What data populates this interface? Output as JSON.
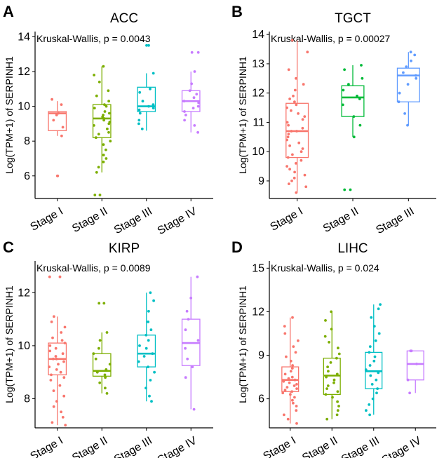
{
  "chart_data": [
    {
      "type": "box",
      "letter": "A",
      "title": "ACC",
      "ylabel": "Log(TPM+1) of SERPINH1",
      "annotation": "Kruskal-Wallis, p = 0.0043",
      "ylim": [
        4.7,
        14.3
      ],
      "yticks": [
        6,
        8,
        10,
        12,
        14
      ],
      "categories": [
        "Stage I",
        "Stage II",
        "Stage III",
        "Stage IV"
      ],
      "colors": [
        "#f8766d",
        "#7cae00",
        "#00bfc4",
        "#c77cff"
      ],
      "boxes": [
        {
          "q1": 8.6,
          "median": 9.6,
          "q3": 9.7,
          "lower": 8.3,
          "upper": 10.3
        },
        {
          "q1": 8.2,
          "median": 9.3,
          "q3": 10.1,
          "lower": 6.2,
          "upper": 12.3
        },
        {
          "q1": 9.7,
          "median": 10.0,
          "q3": 11.1,
          "lower": 8.6,
          "upper": 11.9
        },
        {
          "q1": 9.7,
          "median": 10.3,
          "q3": 10.9,
          "lower": 8.5,
          "upper": 12.0
        }
      ],
      "points": [
        [
          10.4,
          10.1,
          9.6,
          9.5,
          9.2,
          8.8,
          8.3,
          6.0,
          6.0
        ],
        [
          12.3,
          11.8,
          11.4,
          10.9,
          10.6,
          10.3,
          10.1,
          10.0,
          9.9,
          9.7,
          9.6,
          9.5,
          9.4,
          9.3,
          9.2,
          9.1,
          9.0,
          8.9,
          8.7,
          8.5,
          8.4,
          8.2,
          8.0,
          7.8,
          7.5,
          7.2,
          7.0,
          6.8,
          6.5,
          6.2,
          4.9,
          4.9
        ],
        [
          13.5,
          13.5,
          11.9,
          11.0,
          10.8,
          10.3,
          10.1,
          10.0,
          9.9,
          9.8,
          9.6,
          9.2,
          9.0,
          8.7
        ],
        [
          13.1,
          13.1,
          12.0,
          11.3,
          10.9,
          10.7,
          10.5,
          10.3,
          10.2,
          10.0,
          9.9,
          9.7,
          9.5,
          9.2,
          8.9,
          8.5
        ]
      ]
    },
    {
      "type": "box",
      "letter": "B",
      "title": "TGCT",
      "ylabel": "Log(TPM+1) of SERPINH1",
      "annotation": "Kruskal-Wallis, p = 0.00027",
      "ylim": [
        8.4,
        14.1
      ],
      "yticks": [
        9,
        10,
        11,
        12,
        13,
        14
      ],
      "categories": [
        "Stage I",
        "Stage II",
        "Stage III"
      ],
      "colors": [
        "#f8766d",
        "#00ba38",
        "#619cff"
      ],
      "boxes": [
        {
          "q1": 9.8,
          "median": 10.7,
          "q3": 11.65,
          "lower": 8.6,
          "upper": 13.8
        },
        {
          "q1": 11.2,
          "median": 11.85,
          "q3": 12.25,
          "lower": 10.5,
          "upper": 12.95
        },
        {
          "q1": 11.7,
          "median": 12.6,
          "q3": 12.85,
          "lower": 10.9,
          "upper": 13.4
        }
      ],
      "points": [
        [
          13.8,
          13.4,
          12.8,
          12.5,
          12.3,
          12.1,
          11.9,
          11.8,
          11.7,
          11.6,
          11.5,
          11.4,
          11.3,
          11.2,
          11.1,
          11.0,
          10.9,
          10.8,
          10.7,
          10.7,
          10.6,
          10.5,
          10.4,
          10.3,
          10.2,
          10.1,
          10.0,
          9.9,
          9.8,
          9.7,
          9.6,
          9.5,
          9.4,
          9.3,
          9.2,
          9.1,
          9.0,
          8.9,
          8.8,
          8.6
        ],
        [
          12.95,
          12.8,
          12.5,
          12.3,
          12.1,
          11.9,
          11.8,
          11.6,
          11.2,
          10.9,
          10.5,
          8.7,
          8.7
        ],
        [
          13.4,
          13.3,
          13.1,
          12.9,
          12.7,
          12.6,
          12.5,
          12.3,
          12.0,
          11.7,
          11.3,
          10.9
        ]
      ]
    },
    {
      "type": "box",
      "letter": "C",
      "title": "KIRP",
      "ylabel": "Log(TPM+1) of SERPINH1",
      "annotation": "Kruskal-Wallis, p = 0.0089",
      "ylim": [
        6.9,
        13.2
      ],
      "yticks": [
        8,
        10,
        12
      ],
      "categories": [
        "Stage I",
        "Stage II",
        "Stage III",
        "Stage IV"
      ],
      "colors": [
        "#f8766d",
        "#7cae00",
        "#00bfc4",
        "#c77cff"
      ],
      "boxes": [
        {
          "q1": 8.9,
          "median": 9.5,
          "q3": 10.1,
          "lower": 7.0,
          "upper": 11.1
        },
        {
          "q1": 8.85,
          "median": 9.05,
          "q3": 9.7,
          "lower": 8.2,
          "upper": 10.5
        },
        {
          "q1": 9.2,
          "median": 9.7,
          "q3": 10.4,
          "lower": 7.9,
          "upper": 12.0
        },
        {
          "q1": 9.25,
          "median": 10.1,
          "q3": 11.0,
          "lower": 7.6,
          "upper": 12.6
        }
      ],
      "points": [
        [
          12.6,
          12.6,
          11.1,
          10.9,
          10.7,
          10.5,
          10.3,
          10.2,
          10.1,
          10.0,
          9.9,
          9.8,
          9.7,
          9.6,
          9.5,
          9.5,
          9.4,
          9.3,
          9.2,
          9.1,
          9.0,
          8.9,
          8.8,
          8.7,
          8.5,
          8.3,
          8.1,
          7.9,
          7.7,
          7.5,
          7.3,
          7.1,
          7.0
        ],
        [
          11.6,
          11.6,
          10.5,
          10.2,
          9.9,
          9.7,
          9.5,
          9.3,
          9.1,
          9.0,
          8.9,
          8.8,
          8.6,
          8.4,
          8.2
        ],
        [
          12.0,
          11.7,
          11.3,
          10.9,
          10.6,
          10.4,
          10.2,
          10.0,
          9.9,
          9.7,
          9.6,
          9.4,
          9.2,
          9.0,
          8.7,
          8.4,
          8.1,
          7.9
        ],
        [
          12.6,
          11.8,
          11.3,
          11.0,
          10.6,
          10.2,
          9.9,
          9.5,
          9.2,
          8.8,
          7.6
        ]
      ]
    },
    {
      "type": "box",
      "letter": "D",
      "title": "LIHC",
      "ylabel": "Log(TPM+1) of SERPINH1",
      "annotation": "Kruskal-Wallis, p = 0.024",
      "ylim": [
        4.0,
        15.5
      ],
      "yticks": [
        6,
        9,
        12,
        15
      ],
      "categories": [
        "Stage I",
        "Stage II",
        "Stage III",
        "Stage IV"
      ],
      "colors": [
        "#f8766d",
        "#7cae00",
        "#00bfc4",
        "#c77cff"
      ],
      "boxes": [
        {
          "q1": 6.5,
          "median": 7.3,
          "q3": 8.2,
          "lower": 4.3,
          "upper": 11.6
        },
        {
          "q1": 6.3,
          "median": 7.6,
          "q3": 8.8,
          "lower": 4.6,
          "upper": 12.0
        },
        {
          "q1": 6.7,
          "median": 7.9,
          "q3": 9.2,
          "lower": 4.9,
          "upper": 12.5
        },
        {
          "q1": 7.3,
          "median": 8.4,
          "q3": 9.3,
          "lower": 6.4,
          "upper": 9.3
        }
      ],
      "points": [
        [
          11.6,
          11.0,
          10.5,
          10.0,
          9.6,
          9.2,
          8.9,
          8.6,
          8.3,
          8.1,
          7.9,
          7.7,
          7.5,
          7.4,
          7.3,
          7.2,
          7.1,
          7.0,
          6.9,
          6.8,
          6.7,
          6.6,
          6.5,
          6.4,
          6.3,
          6.1,
          5.9,
          5.7,
          5.5,
          5.2,
          4.9,
          4.6,
          4.3
        ],
        [
          12.0,
          11.4,
          10.8,
          10.3,
          9.9,
          9.5,
          9.1,
          8.8,
          8.5,
          8.2,
          7.9,
          7.7,
          7.5,
          7.3,
          7.1,
          6.9,
          6.7,
          6.5,
          6.3,
          6.1,
          5.8,
          5.5,
          5.2,
          4.9,
          4.6
        ],
        [
          12.5,
          12.2,
          11.6,
          11.0,
          10.5,
          10.0,
          9.6,
          9.2,
          8.9,
          8.6,
          8.3,
          8.0,
          7.8,
          7.6,
          7.3,
          7.0,
          6.7,
          6.4,
          6.0,
          5.6,
          5.2,
          4.9
        ],
        [
          9.3,
          9.3,
          8.4,
          7.3,
          6.4
        ]
      ]
    }
  ]
}
